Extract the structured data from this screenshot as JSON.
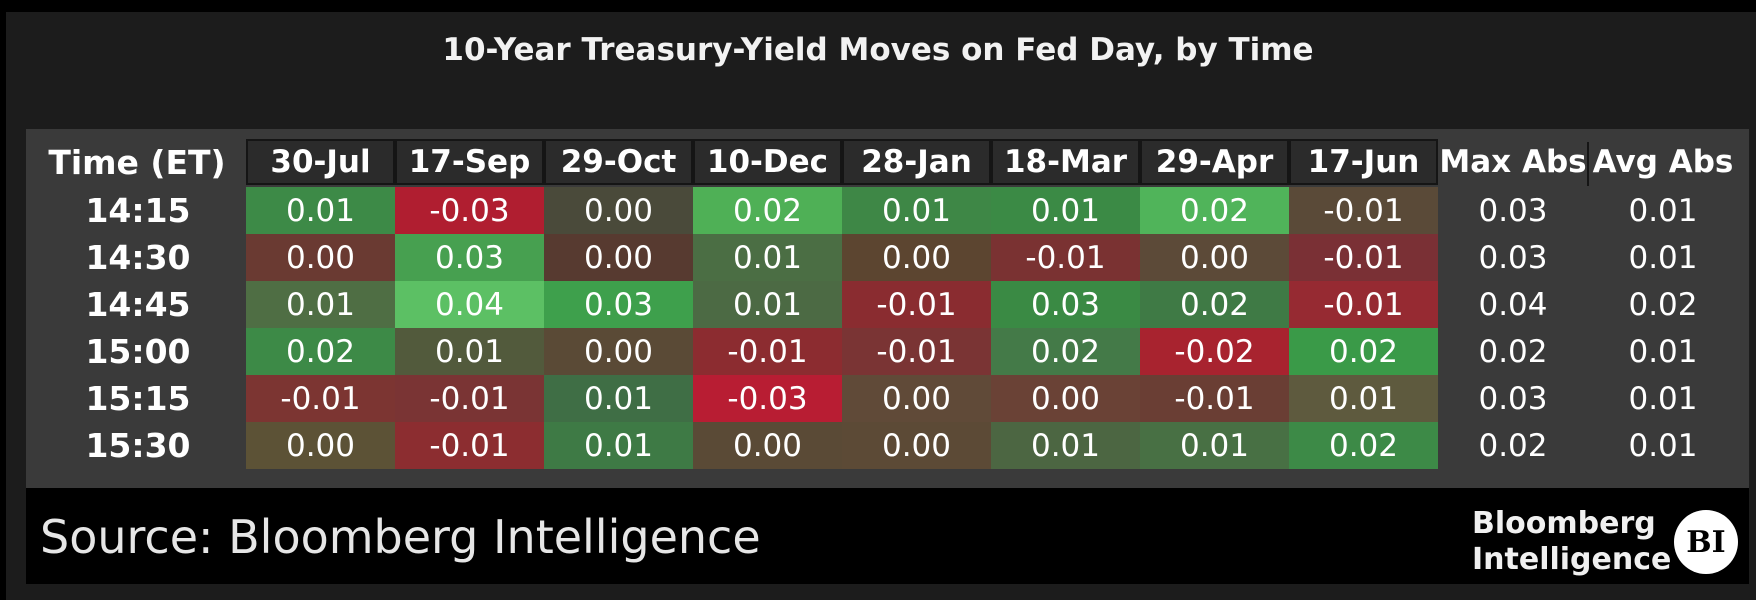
{
  "chart_data": {
    "type": "heatmap",
    "title": "10-Year Treasury-Yield Moves on Fed Day, by Time",
    "row_header": "Time (ET)",
    "columns": [
      "30-Jul",
      "17-Sep",
      "29-Oct",
      "10-Dec",
      "28-Jan",
      "18-Mar",
      "29-Apr",
      "17-Jun"
    ],
    "stat_columns": [
      "Max Abs",
      "Avg Abs"
    ],
    "rows": [
      {
        "time": "14:15",
        "values": [
          "0.01",
          "-0.03",
          "0.00",
          "0.02",
          "0.01",
          "0.01",
          "0.02",
          "-0.01"
        ],
        "max_abs": "0.03",
        "avg_abs": "0.01"
      },
      {
        "time": "14:30",
        "values": [
          "0.00",
          "0.03",
          "0.00",
          "0.01",
          "0.00",
          "-0.01",
          "0.00",
          "-0.01"
        ],
        "max_abs": "0.03",
        "avg_abs": "0.01"
      },
      {
        "time": "14:45",
        "values": [
          "0.01",
          "0.04",
          "0.03",
          "0.01",
          "-0.01",
          "0.03",
          "0.02",
          "-0.01"
        ],
        "max_abs": "0.04",
        "avg_abs": "0.02"
      },
      {
        "time": "15:00",
        "values": [
          "0.02",
          "0.01",
          "0.00",
          "-0.01",
          "-0.01",
          "0.02",
          "-0.02",
          "0.02"
        ],
        "max_abs": "0.02",
        "avg_abs": "0.01"
      },
      {
        "time": "15:15",
        "values": [
          "-0.01",
          "-0.01",
          "0.01",
          "-0.03",
          "0.00",
          "0.00",
          "-0.01",
          "0.01"
        ],
        "max_abs": "0.03",
        "avg_abs": "0.01"
      },
      {
        "time": "15:30",
        "values": [
          "0.00",
          "-0.01",
          "0.01",
          "0.00",
          "0.00",
          "0.01",
          "0.01",
          "0.02"
        ],
        "max_abs": "0.02",
        "avg_abs": "0.01"
      }
    ],
    "cell_colors": [
      [
        "#3d8a47",
        "#b01e30",
        "#4a4a3a",
        "#4fb056",
        "#3e8746",
        "#3b8a45",
        "#50b45a",
        "#5a4a38"
      ],
      [
        "#6a3a32",
        "#47a050",
        "#573a30",
        "#4b6e44",
        "#5c4530",
        "#7a3232",
        "#5c4a38",
        "#7a3035"
      ],
      [
        "#4f6e44",
        "#5cc064",
        "#3ea04c",
        "#4c6a44",
        "#8a2c30",
        "#3a8a44",
        "#3f7a45",
        "#962a32"
      ],
      [
        "#3d8a47",
        "#525a3c",
        "#5a4a36",
        "#8c2c30",
        "#7a3434",
        "#447a48",
        "#a8232f",
        "#3a9a48"
      ],
      [
        "#7c3532",
        "#7a3434",
        "#3f6e45",
        "#b81d33",
        "#604a38",
        "#6a4236",
        "#6a3e34",
        "#5e5a3e"
      ],
      [
        "#5c5236",
        "#8c2d30",
        "#3e7a45",
        "#5a4a36",
        "#5c4a36",
        "#4c6642",
        "#487044",
        "#3d8a47"
      ]
    ]
  },
  "footer": {
    "source": "Source: Bloomberg Intelligence",
    "logo_line1": "Bloomberg",
    "logo_line2": "Intelligence",
    "logo_badge": "BI"
  }
}
